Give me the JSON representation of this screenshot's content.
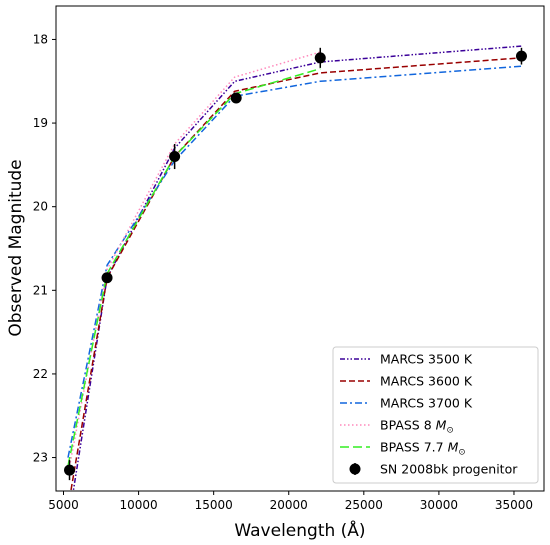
{
  "chart_data": {
    "type": "line",
    "xlabel": "Wavelength (Å)",
    "ylabel": "Observed Magnitude",
    "xlim": [
      4500,
      37000
    ],
    "ylim": [
      23.4,
      17.6
    ],
    "y_inverted": true,
    "x_ticks": [
      5000,
      10000,
      15000,
      20000,
      25000,
      30000,
      35000
    ],
    "y_ticks": [
      18,
      19,
      20,
      21,
      22,
      23
    ],
    "grid": false,
    "legend_position": "lower-right",
    "series": [
      {
        "name": "MARCS 3500 K",
        "color": "#3b0099",
        "dash": "dashdotdot",
        "points": [
          [
            5300,
            23.8
          ],
          [
            7900,
            20.85
          ],
          [
            12400,
            19.3
          ],
          [
            16400,
            18.5
          ],
          [
            22100,
            18.27
          ],
          [
            35500,
            18.08
          ]
        ]
      },
      {
        "name": "MARCS 3600 K",
        "color": "#990000",
        "dash": "dashed",
        "points": [
          [
            5300,
            23.6
          ],
          [
            7900,
            20.85
          ],
          [
            12400,
            19.4
          ],
          [
            16400,
            18.62
          ],
          [
            22100,
            18.4
          ],
          [
            35500,
            18.22
          ]
        ]
      },
      {
        "name": "MARCS 3700 K",
        "color": "#1166dd",
        "dash": "dashdot",
        "points": [
          [
            5300,
            23.0
          ],
          [
            7900,
            20.7
          ],
          [
            12400,
            19.45
          ],
          [
            16400,
            18.68
          ],
          [
            22100,
            18.5
          ],
          [
            35500,
            18.32
          ]
        ]
      },
      {
        "name": "BPASS 8 ",
        "name_sub": "M",
        "name_subscript": "⊙",
        "color": "#ff88bb",
        "dash": "dotted",
        "points": [
          [
            5300,
            23.2
          ],
          [
            7900,
            20.75
          ],
          [
            12400,
            19.25
          ],
          [
            16400,
            18.45
          ],
          [
            22100,
            18.15
          ]
        ]
      },
      {
        "name": "BPASS 7.7 ",
        "name_sub": "M",
        "name_subscript": "⊙",
        "color": "#33ee22",
        "dash": "longdash",
        "points": [
          [
            5300,
            23.1
          ],
          [
            7900,
            20.8
          ],
          [
            12400,
            19.4
          ],
          [
            16400,
            18.65
          ],
          [
            22100,
            18.35
          ]
        ]
      }
    ],
    "observations": {
      "name": "SN 2008bk progenitor",
      "color": "#000000",
      "points": [
        {
          "x": 5400,
          "y": 23.15,
          "err": 0.12
        },
        {
          "x": 7900,
          "y": 20.85,
          "err": 0.05
        },
        {
          "x": 12400,
          "y": 19.4,
          "err": 0.15
        },
        {
          "x": 16500,
          "y": 18.7,
          "err": 0.05
        },
        {
          "x": 22100,
          "y": 18.22,
          "err": 0.12
        },
        {
          "x": 35500,
          "y": 18.2,
          "err": 0.1
        }
      ]
    }
  }
}
